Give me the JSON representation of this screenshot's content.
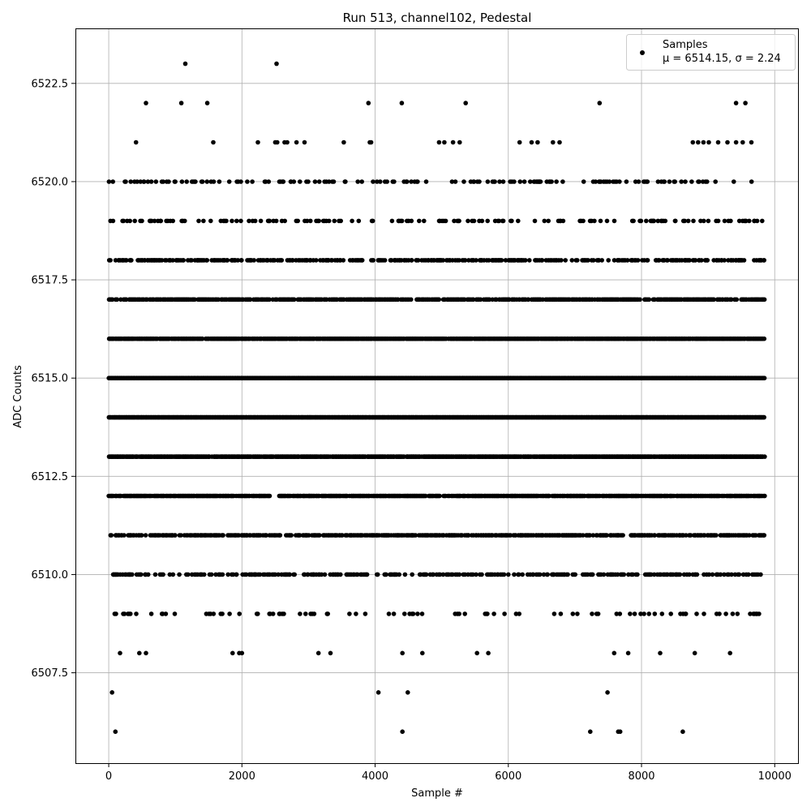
{
  "chart_data": {
    "type": "scatter",
    "title": "Run 513, channel102, Pedestal",
    "xlabel": "Sample #",
    "ylabel": "ADC Counts",
    "xlim": [
      -500,
      10350
    ],
    "ylim": [
      6505.2,
      6523.9
    ],
    "xticks": [
      0,
      2000,
      4000,
      6000,
      8000,
      10000
    ],
    "xtick_labels": [
      "0",
      "2000",
      "4000",
      "6000",
      "8000",
      "10000"
    ],
    "yticks": [
      6507.5,
      6510.0,
      6512.5,
      6515.0,
      6517.5,
      6520.0,
      6522.5
    ],
    "ytick_labels": [
      "6507.5",
      "6510.0",
      "6512.5",
      "6515.0",
      "6517.5",
      "6520.0",
      "6522.5"
    ],
    "grid": true,
    "legend": {
      "placement": "top-right",
      "label": "Samples",
      "stats_text": "μ = 6514.15, σ = 2.24"
    },
    "marker_color": "#000000",
    "sample_count": 9850,
    "series": [
      {
        "name": "Samples",
        "rare_points": [
          [
            1150,
            6523
          ],
          [
            2520,
            6523
          ],
          [
            560,
            6522
          ],
          [
            1090,
            6522
          ],
          [
            1480,
            6522
          ],
          [
            3900,
            6522
          ],
          [
            4400,
            6522
          ],
          [
            5360,
            6522
          ],
          [
            7370,
            6522
          ],
          [
            9420,
            6522
          ],
          [
            9560,
            6522
          ],
          [
            410,
            6521
          ],
          [
            1570,
            6521
          ],
          [
            2240,
            6521
          ],
          [
            2500,
            6521
          ],
          [
            2530,
            6521
          ],
          [
            2640,
            6521
          ],
          [
            2680,
            6521
          ],
          [
            2820,
            6521
          ],
          [
            2940,
            6521
          ],
          [
            3530,
            6521
          ],
          [
            3920,
            6521
          ],
          [
            3940,
            6521
          ],
          [
            4960,
            6521
          ],
          [
            5040,
            6521
          ],
          [
            5170,
            6521
          ],
          [
            5270,
            6521
          ],
          [
            6170,
            6521
          ],
          [
            6350,
            6521
          ],
          [
            6440,
            6521
          ],
          [
            6670,
            6521
          ],
          [
            6770,
            6521
          ],
          [
            8770,
            6521
          ],
          [
            8850,
            6521
          ],
          [
            8930,
            6521
          ],
          [
            9010,
            6521
          ],
          [
            9150,
            6521
          ],
          [
            9290,
            6521
          ],
          [
            9420,
            6521
          ],
          [
            9520,
            6521
          ],
          [
            9650,
            6521
          ],
          [
            50,
            6507
          ],
          [
            4050,
            6507
          ],
          [
            4490,
            6507
          ],
          [
            7490,
            6507
          ],
          [
            100,
            6506
          ],
          [
            4410,
            6506
          ],
          [
            7230,
            6506
          ],
          [
            7650,
            6506
          ],
          [
            7680,
            6506
          ],
          [
            8620,
            6506
          ]
        ],
        "sparse_points": [
          [
            170,
            6508
          ],
          [
            460,
            6508
          ],
          [
            560,
            6508
          ],
          [
            1860,
            6508
          ],
          [
            1960,
            6508
          ],
          [
            2000,
            6508
          ],
          [
            3150,
            6508
          ],
          [
            3330,
            6508
          ],
          [
            4410,
            6508
          ],
          [
            4710,
            6508
          ],
          [
            5530,
            6508
          ],
          [
            5700,
            6508
          ],
          [
            7590,
            6508
          ],
          [
            7800,
            6508
          ],
          [
            8280,
            6508
          ],
          [
            8800,
            6508
          ],
          [
            9330,
            6508
          ]
        ],
        "levels": [
          {
            "y": 6520,
            "density": 0.15,
            "gaps": []
          },
          {
            "y": 6519,
            "density": 0.2,
            "gaps": []
          },
          {
            "y": 6518,
            "density": 0.4,
            "gaps": []
          },
          {
            "y": 6517,
            "density": 0.7,
            "gaps": []
          },
          {
            "y": 6516,
            "density": 0.9,
            "gaps": []
          },
          {
            "y": 6515,
            "density": 1.0,
            "gaps": []
          },
          {
            "y": 6514,
            "density": 1.0,
            "gaps": []
          },
          {
            "y": 6513,
            "density": 0.95,
            "gaps": []
          },
          {
            "y": 6512,
            "density": 0.85,
            "gaps": [
              [
                2420,
                2540
              ]
            ]
          },
          {
            "y": 6511,
            "density": 0.6,
            "gaps": []
          },
          {
            "y": 6510,
            "density": 0.35,
            "gaps": []
          },
          {
            "y": 6509,
            "density": 0.12,
            "gaps": []
          }
        ]
      }
    ]
  }
}
